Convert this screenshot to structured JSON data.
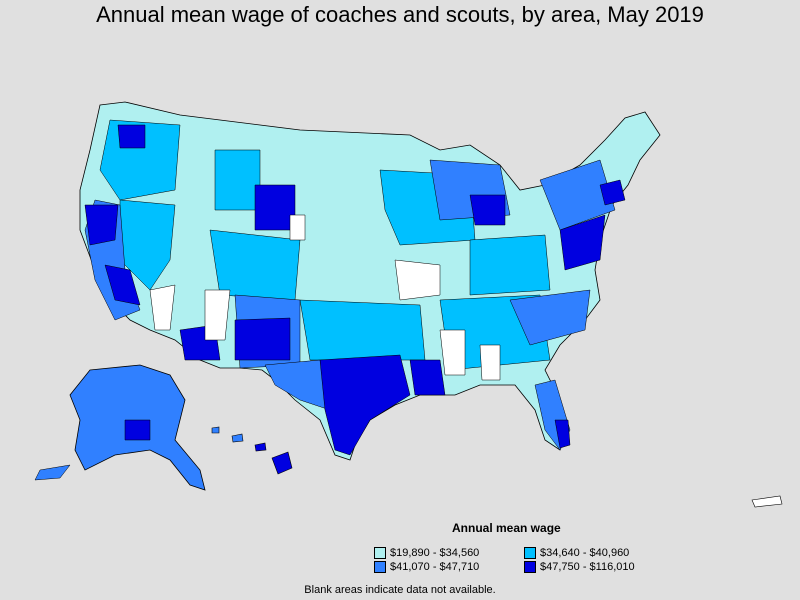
{
  "title": "Annual mean wage of coaches and scouts, by area, May 2019",
  "legend": {
    "title": "Annual mean wage",
    "items": [
      {
        "label": "$19,890 - $34,560",
        "color": "#b0f0f0"
      },
      {
        "label": "$34,640 - $40,960",
        "color": "#00c0ff"
      },
      {
        "label": "$41,070 - $47,710",
        "color": "#3080ff"
      },
      {
        "label": "$47,750 - $116,010",
        "color": "#0000e0"
      }
    ]
  },
  "note": "Blank areas indicate data not available.",
  "colors": {
    "background": "#e0e0e0",
    "no_data": "#ffffff",
    "border": "#000000"
  }
}
